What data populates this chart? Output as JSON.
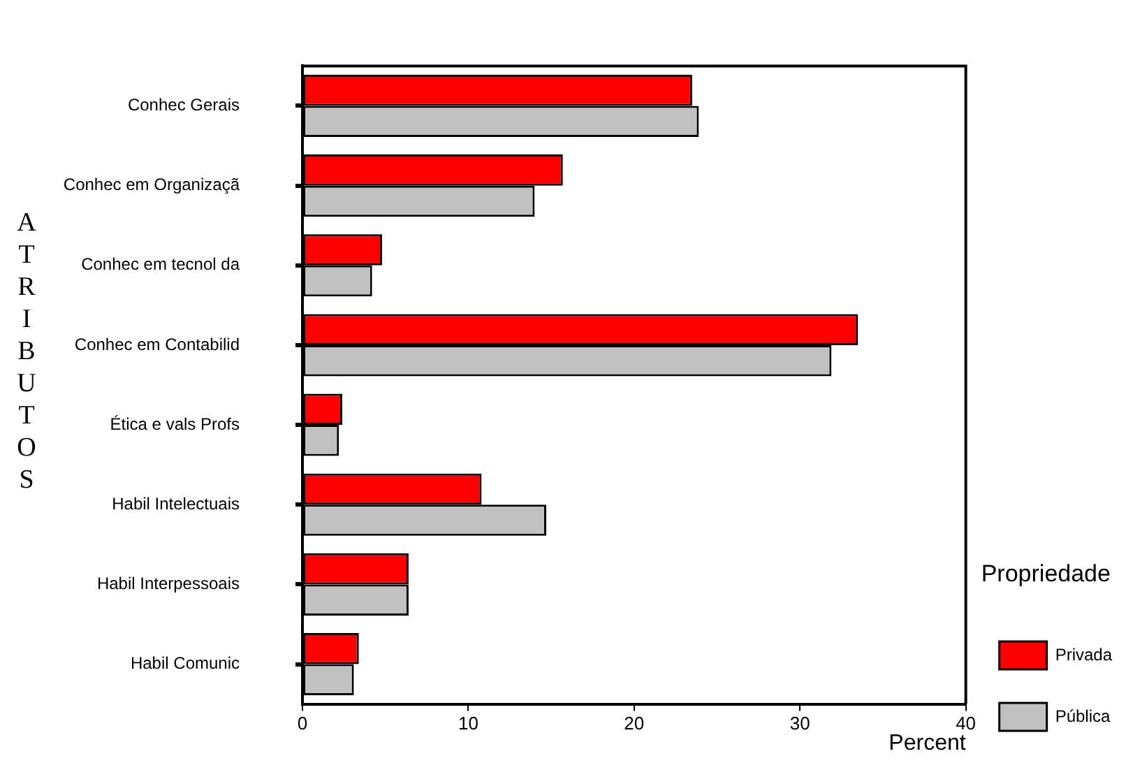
{
  "chart_data": {
    "type": "bar",
    "orientation": "horizontal",
    "xlabel": "Percent",
    "ylabel": "ATRIBUTOS",
    "legend_title": "Propriedade",
    "categories": [
      "Conhec Gerais",
      "Conhec em Organizaçã",
      "Conhec em tecnol da",
      "Conhec em Contabilid",
      "Ética e vals Profs",
      "Habil Intelectuais",
      "Habil Interpessoais",
      "Habil Comunic"
    ],
    "series": [
      {
        "name": "Privada",
        "color": "#ff0000",
        "values": [
          23.5,
          15.7,
          4.8,
          33.5,
          2.4,
          10.8,
          6.4,
          3.4
        ]
      },
      {
        "name": "Pública",
        "color": "#c0c0c0",
        "values": [
          23.9,
          14.0,
          4.2,
          31.9,
          2.2,
          14.7,
          6.4,
          3.1
        ]
      }
    ],
    "xlim": [
      0,
      40
    ],
    "xticks": [
      0,
      10,
      20,
      30,
      40
    ],
    "grid": false,
    "legend": "bottom right"
  }
}
